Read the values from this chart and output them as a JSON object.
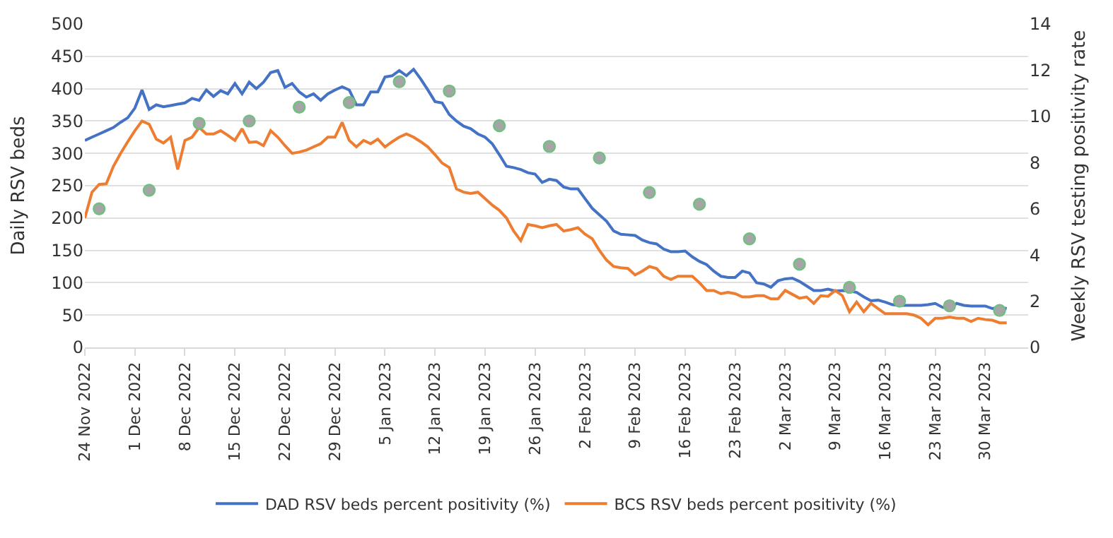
{
  "chart_data": {
    "type": "line",
    "ylabel": "Daily RSV beds",
    "y2label": "Weekly RSV testing positivity rate",
    "x": [
      "2022-11-24",
      "2022-11-25",
      "2022-11-26",
      "2022-11-27",
      "2022-11-28",
      "2022-11-29",
      "2022-11-30",
      "2022-12-01",
      "2022-12-02",
      "2022-12-03",
      "2022-12-04",
      "2022-12-05",
      "2022-12-06",
      "2022-12-07",
      "2022-12-08",
      "2022-12-09",
      "2022-12-10",
      "2022-12-11",
      "2022-12-12",
      "2022-12-13",
      "2022-12-14",
      "2022-12-15",
      "2022-12-16",
      "2022-12-17",
      "2022-12-18",
      "2022-12-19",
      "2022-12-20",
      "2022-12-21",
      "2022-12-22",
      "2022-12-23",
      "2022-12-24",
      "2022-12-25",
      "2022-12-26",
      "2022-12-27",
      "2022-12-28",
      "2022-12-29",
      "2022-12-30",
      "2022-12-31",
      "2023-01-01",
      "2023-01-02",
      "2023-01-03",
      "2023-01-04",
      "2023-01-05",
      "2023-01-06",
      "2023-01-07",
      "2023-01-08",
      "2023-01-09",
      "2023-01-10",
      "2023-01-11",
      "2023-01-12",
      "2023-01-13",
      "2023-01-14",
      "2023-01-15",
      "2023-01-16",
      "2023-01-17",
      "2023-01-18",
      "2023-01-19",
      "2023-01-20",
      "2023-01-21",
      "2023-01-22",
      "2023-01-23",
      "2023-01-24",
      "2023-01-25",
      "2023-01-26",
      "2023-01-27",
      "2023-01-28",
      "2023-01-29",
      "2023-01-30",
      "2023-01-31",
      "2023-02-01",
      "2023-02-02",
      "2023-02-03",
      "2023-02-04",
      "2023-02-05",
      "2023-02-06",
      "2023-02-07",
      "2023-02-08",
      "2023-02-09",
      "2023-02-10",
      "2023-02-11",
      "2023-02-12",
      "2023-02-13",
      "2023-02-14",
      "2023-02-15",
      "2023-02-16",
      "2023-02-17",
      "2023-02-18",
      "2023-02-19",
      "2023-02-20",
      "2023-02-21",
      "2023-02-22",
      "2023-02-23",
      "2023-02-24",
      "2023-02-25",
      "2023-02-26",
      "2023-02-27",
      "2023-02-28",
      "2023-03-01",
      "2023-03-02",
      "2023-03-03",
      "2023-03-04",
      "2023-03-05",
      "2023-03-06",
      "2023-03-07",
      "2023-03-08",
      "2023-03-09",
      "2023-03-10",
      "2023-03-11",
      "2023-03-12",
      "2023-03-13",
      "2023-03-14",
      "2023-03-15",
      "2023-03-16",
      "2023-03-17",
      "2023-03-18",
      "2023-03-19",
      "2023-03-20",
      "2023-03-21",
      "2023-03-22",
      "2023-03-23",
      "2023-03-24",
      "2023-03-25",
      "2023-03-26",
      "2023-03-27",
      "2023-03-28",
      "2023-03-29",
      "2023-03-30",
      "2023-03-31",
      "2023-04-01",
      "2023-04-02"
    ],
    "xlim": [
      "2022-11-24",
      "2023-04-05"
    ],
    "xticks": [
      {
        "value": "2022-11-24",
        "label": "24 Nov 2022"
      },
      {
        "value": "2022-12-01",
        "label": "1 Dec 2022"
      },
      {
        "value": "2022-12-08",
        "label": "8 Dec 2022"
      },
      {
        "value": "2022-12-15",
        "label": "15 Dec 2022"
      },
      {
        "value": "2022-12-22",
        "label": "22 Dec 2022"
      },
      {
        "value": "2022-12-29",
        "label": "29 Dec 2022"
      },
      {
        "value": "2023-01-05",
        "label": "5 Jan 2023"
      },
      {
        "value": "2023-01-12",
        "label": "12 Jan 2023"
      },
      {
        "value": "2023-01-19",
        "label": "19 Jan 2023"
      },
      {
        "value": "2023-01-26",
        "label": "26 Jan 2023"
      },
      {
        "value": "2023-02-02",
        "label": "2 Feb 2023"
      },
      {
        "value": "2023-02-09",
        "label": "9 Feb 2023"
      },
      {
        "value": "2023-02-16",
        "label": "16 Feb 2023"
      },
      {
        "value": "2023-02-23",
        "label": "23 Feb 2023"
      },
      {
        "value": "2023-03-02",
        "label": "2 Mar 2023"
      },
      {
        "value": "2023-03-09",
        "label": "9 Mar 2023"
      },
      {
        "value": "2023-03-16",
        "label": "16 Mar 2023"
      },
      {
        "value": "2023-03-23",
        "label": "23 Mar 2023"
      },
      {
        "value": "2023-03-30",
        "label": "30 Mar 2023"
      }
    ],
    "ylim": [
      0,
      500
    ],
    "yticks": [
      0,
      50,
      100,
      150,
      200,
      250,
      300,
      350,
      400,
      450,
      500
    ],
    "y2lim": [
      0,
      14
    ],
    "y2ticks": [
      0,
      2,
      4,
      6,
      8,
      10,
      12,
      14
    ],
    "grid": "y",
    "legend": "bottom",
    "line_style": "solid",
    "marker": "none",
    "series": [
      {
        "name": "DAD RSV beds percent positivity (%)",
        "color": "#4472c4",
        "values": [
          320,
          325,
          330,
          335,
          340,
          348,
          355,
          370,
          398,
          368,
          375,
          372,
          374,
          376,
          378,
          385,
          382,
          398,
          388,
          397,
          392,
          408,
          392,
          410,
          400,
          410,
          425,
          428,
          402,
          408,
          395,
          387,
          392,
          382,
          392,
          398,
          403,
          398,
          375,
          375,
          395,
          395,
          418,
          420,
          428,
          420,
          430,
          415,
          398,
          380,
          378,
          360,
          350,
          342,
          338,
          330,
          325,
          315,
          298,
          280,
          278,
          275,
          270,
          268,
          255,
          260,
          258,
          248,
          245,
          245,
          230,
          215,
          205,
          195,
          180,
          175,
          174,
          173,
          166,
          162,
          160,
          152,
          148,
          148,
          149,
          140,
          133,
          128,
          118,
          110,
          108,
          108,
          118,
          115,
          100,
          98,
          93,
          103,
          106,
          107,
          102,
          95,
          88,
          88,
          90,
          87,
          88,
          87,
          85,
          78,
          72,
          73,
          70,
          66,
          65,
          65,
          65,
          65,
          66,
          68,
          62,
          60,
          68,
          65,
          64,
          64,
          64,
          60,
          62,
          60
        ]
      },
      {
        "name": "BCS RSV beds percent positivity (%)",
        "color": "#ed7d31",
        "values": [
          200,
          240,
          252,
          253,
          280,
          300,
          318,
          335,
          350,
          345,
          322,
          316,
          325,
          275,
          320,
          325,
          340,
          330,
          330,
          335,
          328,
          320,
          338,
          317,
          318,
          312,
          335,
          325,
          312,
          300,
          302,
          305,
          310,
          315,
          325,
          325,
          348,
          320,
          310,
          320,
          315,
          322,
          310,
          318,
          325,
          330,
          325,
          318,
          310,
          298,
          285,
          278,
          245,
          240,
          238,
          240,
          230,
          220,
          212,
          200,
          180,
          165,
          190,
          188,
          185,
          188,
          190,
          180,
          182,
          185,
          175,
          168,
          150,
          135,
          125,
          123,
          122,
          112,
          118,
          125,
          122,
          110,
          105,
          110,
          110,
          110,
          100,
          88,
          88,
          83,
          85,
          83,
          78,
          78,
          80,
          80,
          75,
          75,
          88,
          82,
          76,
          78,
          68,
          80,
          79,
          88,
          80,
          55,
          70,
          55,
          68,
          60,
          52,
          52,
          52,
          52,
          50,
          45,
          35,
          45,
          45,
          47,
          45,
          45,
          40,
          45,
          43,
          42,
          38,
          38
        ]
      },
      {
        "type": "scatter",
        "axis": "y2",
        "marker": "circle",
        "color": "#a5a5a5",
        "x": [
          "2022-11-26",
          "2022-12-03",
          "2022-12-10",
          "2022-12-17",
          "2022-12-24",
          "2022-12-31",
          "2023-01-07",
          "2023-01-14",
          "2023-01-21",
          "2023-01-28",
          "2023-02-04",
          "2023-02-11",
          "2023-02-18",
          "2023-02-25",
          "2023-03-04",
          "2023-03-11",
          "2023-03-18",
          "2023-03-25",
          "2023-04-01"
        ],
        "values": [
          6.0,
          6.8,
          9.7,
          9.8,
          10.4,
          10.6,
          11.5,
          11.1,
          9.6,
          8.7,
          8.2,
          6.7,
          6.2,
          4.7,
          3.6,
          2.6,
          2.0,
          1.8,
          1.6
        ]
      }
    ]
  }
}
